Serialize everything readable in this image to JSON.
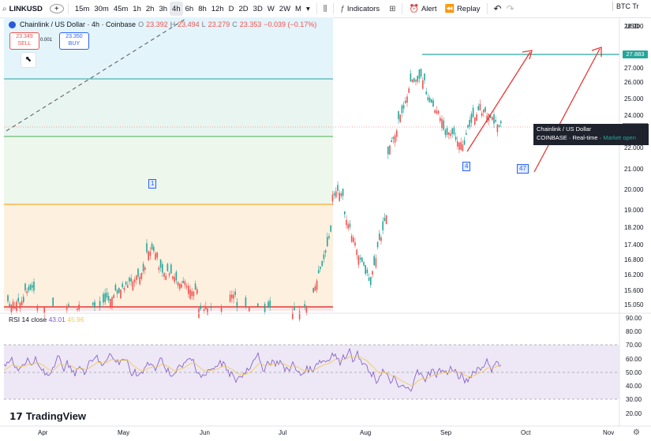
{
  "toolbar": {
    "symbol": "LINKUSD",
    "add_label": "+",
    "timeframes": [
      "15m",
      "30m",
      "45m",
      "1h",
      "2h",
      "3h",
      "4h",
      "6h",
      "8h",
      "12h",
      "D",
      "2D",
      "3D",
      "W",
      "2W",
      "M"
    ],
    "active_timeframe": "4h",
    "dropdown_icon": "▾",
    "indicators_label": "Indicators",
    "alert_label": "Alert",
    "replay_label": "Replay",
    "undo_icon": "↶",
    "redo_icon": "↷",
    "compare_symbol": "BTC Tr"
  },
  "legend": {
    "title": "Chainlink / US Dollar · 4h · Coinbase",
    "o_label": "O",
    "o": "23.392",
    "h_label": "H",
    "h": "23.494",
    "l_label": "L",
    "l": "23.279",
    "c_label": "C",
    "c": "23.353",
    "change": "−0.039 (−0.17%)"
  },
  "trade": {
    "sell_price": "23.349",
    "sell_label": "SELL",
    "spread": "0.001",
    "buy_price": "23.350",
    "buy_label": "BUY"
  },
  "price_axis": {
    "currency": "USD",
    "labels": [
      "28.000",
      "27.000",
      "26.000",
      "25.000",
      "24.000",
      "22.000",
      "21.000",
      "20.000",
      "19.000",
      "18.200",
      "17.400",
      "16.800",
      "16.200",
      "15.600",
      "15.050"
    ],
    "current_tag": "27.883",
    "current_tag_color": "#26a69a",
    "last_price_tag": "23.353",
    "last_price_color": "#ef5350"
  },
  "rsi": {
    "label": "RSI 14 close",
    "value1": "43.01",
    "value2": "45.96",
    "axis": [
      "90.00",
      "80.00",
      "70.00",
      "60.00",
      "50.00",
      "40.00",
      "30.00",
      "20.00"
    ],
    "line_color": "#7e57c2",
    "band_color": "#ede7f6"
  },
  "time_axis": [
    "Apr",
    "May",
    "Jun",
    "Jul",
    "Aug",
    "Sep",
    "Oct",
    "Nov"
  ],
  "tooltip": {
    "title": "Chainlink / US Dollar",
    "exchange": "COINBASE",
    "realtime": "Real-time",
    "status": "Market open"
  },
  "wave_labels": {
    "one": "1",
    "four": "4",
    "forty_seven": "47"
  },
  "brand": "TradingView",
  "colors": {
    "up": "#26a69a",
    "down": "#ef5350",
    "target_arrow": "#e53935",
    "line_green": "#4caf50",
    "line_orange": "#ff9800",
    "line_red": "#e53935"
  }
}
